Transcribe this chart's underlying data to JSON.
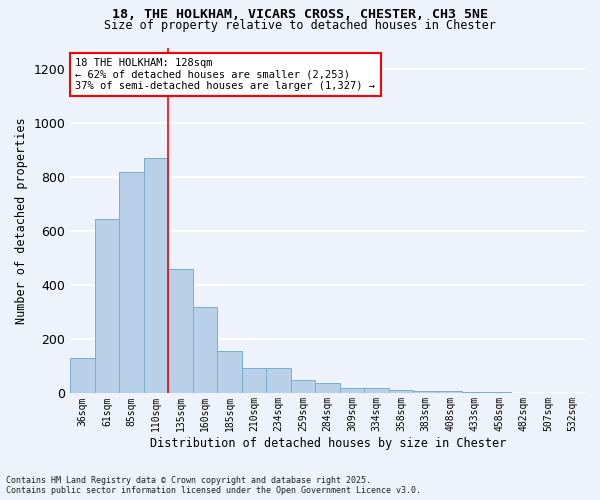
{
  "title1": "18, THE HOLKHAM, VICARS CROSS, CHESTER, CH3 5NE",
  "title2": "Size of property relative to detached houses in Chester",
  "xlabel": "Distribution of detached houses by size in Chester",
  "ylabel": "Number of detached properties",
  "categories": [
    "36sqm",
    "61sqm",
    "85sqm",
    "110sqm",
    "135sqm",
    "160sqm",
    "185sqm",
    "210sqm",
    "234sqm",
    "259sqm",
    "284sqm",
    "309sqm",
    "334sqm",
    "358sqm",
    "383sqm",
    "408sqm",
    "433sqm",
    "458sqm",
    "482sqm",
    "507sqm",
    "532sqm"
  ],
  "values": [
    130,
    645,
    820,
    870,
    460,
    320,
    158,
    93,
    93,
    50,
    37,
    20,
    20,
    12,
    8,
    8,
    4,
    4,
    2,
    2,
    1
  ],
  "bar_color": "#b8d0e8",
  "bar_edge_color": "#7aaecc",
  "vline_x": 3.5,
  "vline_color": "red",
  "annotation_text": "18 THE HOLKHAM: 128sqm\n← 62% of detached houses are smaller (2,253)\n37% of semi-detached houses are larger (1,327) →",
  "annotation_box_color": "white",
  "annotation_box_edge": "red",
  "ylim": [
    0,
    1280
  ],
  "yticks": [
    0,
    200,
    400,
    600,
    800,
    1000,
    1200
  ],
  "footer1": "Contains HM Land Registry data © Crown copyright and database right 2025.",
  "footer2": "Contains public sector information licensed under the Open Government Licence v3.0.",
  "bg_color": "#eef2fa",
  "grid_color": "white"
}
